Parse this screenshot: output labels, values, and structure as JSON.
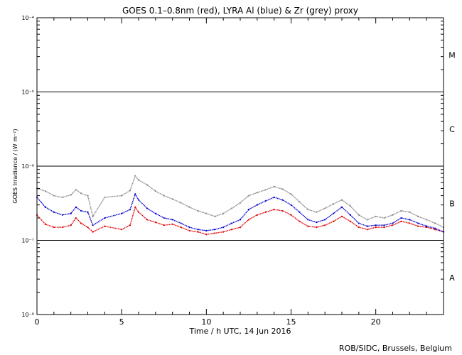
{
  "chart_data": {
    "type": "line",
    "title": "GOES 0.1–0.8nm (red), LYRA Al (blue) & Zr (grey) proxy",
    "xlabel": "Time / h UTC, 14 Jun 2016",
    "ylabel": "GOES Irradiance / (W m⁻²)",
    "xlim": [
      0,
      24
    ],
    "ylim_log10": [
      -8,
      -4
    ],
    "yscale": "log",
    "grid": false,
    "x_ticks": [
      "0",
      "5",
      "10",
      "15",
      "20"
    ],
    "y_ticks": [
      {
        "exp": -8,
        "label": "10⁻⁸"
      },
      {
        "exp": -7,
        "label": "10⁻⁷"
      },
      {
        "exp": -6,
        "label": "10⁻⁶"
      },
      {
        "exp": -5,
        "label": "10⁻⁵"
      },
      {
        "exp": -4,
        "label": "10⁻⁴"
      }
    ],
    "flare_class_lines": [
      {
        "value": 1e-07,
        "class": "A/B"
      },
      {
        "value": 1e-06,
        "class": "B/C"
      },
      {
        "value": 1e-05,
        "class": "C/M"
      }
    ],
    "flare_classes": [
      {
        "label": "M",
        "log_value": -4.5
      },
      {
        "label": "C",
        "log_value": -5.5
      },
      {
        "label": "B",
        "log_value": -6.5
      },
      {
        "label": "A",
        "log_value": -7.5
      }
    ],
    "series": [
      {
        "name": "GOES 0.1–0.8nm",
        "color": "#e00000",
        "x": [
          0.0,
          0.5,
          1.0,
          1.5,
          2.0,
          2.3,
          2.6,
          3.0,
          3.3,
          4.0,
          5.0,
          5.5,
          5.8,
          6.0,
          6.5,
          7.0,
          7.5,
          8.0,
          8.5,
          9.0,
          9.5,
          10.0,
          10.5,
          11.0,
          11.5,
          12.0,
          12.5,
          13.0,
          13.5,
          14.0,
          14.5,
          15.0,
          15.5,
          16.0,
          16.5,
          17.0,
          17.5,
          18.0,
          18.5,
          19.0,
          19.5,
          20.0,
          20.5,
          21.0,
          21.5,
          22.0,
          22.5,
          23.0,
          23.5,
          24.0
        ],
        "y": [
          2.2e-07,
          1.65e-07,
          1.5e-07,
          1.5e-07,
          1.6e-07,
          2e-07,
          1.7e-07,
          1.5e-07,
          1.3e-07,
          1.55e-07,
          1.4e-07,
          1.6e-07,
          2.8e-07,
          2.4e-07,
          1.9e-07,
          1.75e-07,
          1.6e-07,
          1.65e-07,
          1.5e-07,
          1.35e-07,
          1.3e-07,
          1.2e-07,
          1.25e-07,
          1.3e-07,
          1.4e-07,
          1.5e-07,
          1.9e-07,
          2.2e-07,
          2.4e-07,
          2.6e-07,
          2.5e-07,
          2.2e-07,
          1.8e-07,
          1.55e-07,
          1.5e-07,
          1.6e-07,
          1.8e-07,
          2.1e-07,
          1.8e-07,
          1.5e-07,
          1.4e-07,
          1.5e-07,
          1.5e-07,
          1.6e-07,
          1.8e-07,
          1.7e-07,
          1.55e-07,
          1.5e-07,
          1.4e-07,
          1.3e-07
        ]
      },
      {
        "name": "LYRA Al",
        "color": "#0000d0",
        "x": [
          0.0,
          0.5,
          1.0,
          1.5,
          2.0,
          2.3,
          2.6,
          3.0,
          3.3,
          4.0,
          5.0,
          5.5,
          5.8,
          6.0,
          6.5,
          7.0,
          7.5,
          8.0,
          8.5,
          9.0,
          9.5,
          10.0,
          10.5,
          11.0,
          11.5,
          12.0,
          12.5,
          13.0,
          13.5,
          14.0,
          14.5,
          15.0,
          15.5,
          16.0,
          16.5,
          17.0,
          17.5,
          18.0,
          18.5,
          19.0,
          19.5,
          20.0,
          20.5,
          21.0,
          21.5,
          22.0,
          22.5,
          23.0,
          23.5,
          24.0
        ],
        "y": [
          3.8e-07,
          2.8e-07,
          2.4e-07,
          2.2e-07,
          2.3e-07,
          2.8e-07,
          2.5e-07,
          2.4e-07,
          1.6e-07,
          2e-07,
          2.3e-07,
          2.6e-07,
          4.2e-07,
          3.5e-07,
          2.7e-07,
          2.3e-07,
          2e-07,
          1.9e-07,
          1.7e-07,
          1.5e-07,
          1.4e-07,
          1.35e-07,
          1.4e-07,
          1.5e-07,
          1.7e-07,
          1.9e-07,
          2.6e-07,
          3e-07,
          3.4e-07,
          3.8e-07,
          3.5e-07,
          3e-07,
          2.4e-07,
          1.9e-07,
          1.75e-07,
          1.9e-07,
          2.3e-07,
          2.8e-07,
          2.2e-07,
          1.7e-07,
          1.55e-07,
          1.6e-07,
          1.6e-07,
          1.7e-07,
          2e-07,
          1.9e-07,
          1.7e-07,
          1.55e-07,
          1.45e-07,
          1.3e-07
        ]
      },
      {
        "name": "LYRA Zr",
        "color": "#8a8a8a",
        "x": [
          0.0,
          0.5,
          1.0,
          1.5,
          2.0,
          2.3,
          2.6,
          3.0,
          3.3,
          4.0,
          5.0,
          5.5,
          5.8,
          6.0,
          6.5,
          7.0,
          7.5,
          8.0,
          8.5,
          9.0,
          9.5,
          10.0,
          10.5,
          11.0,
          11.5,
          12.0,
          12.5,
          13.0,
          13.5,
          14.0,
          14.5,
          15.0,
          15.5,
          16.0,
          16.5,
          17.0,
          17.5,
          18.0,
          18.5,
          19.0,
          19.5,
          20.0,
          20.5,
          21.0,
          21.5,
          22.0,
          22.5,
          23.0,
          23.5,
          24.0
        ],
        "y": [
          5e-07,
          4.6e-07,
          4e-07,
          3.8e-07,
          4.1e-07,
          4.8e-07,
          4.3e-07,
          4e-07,
          2.1e-07,
          3.8e-07,
          4e-07,
          4.7e-07,
          7.4e-07,
          6.5e-07,
          5.6e-07,
          4.6e-07,
          4e-07,
          3.6e-07,
          3.2e-07,
          2.8e-07,
          2.5e-07,
          2.3e-07,
          2.1e-07,
          2.3e-07,
          2.7e-07,
          3.2e-07,
          4e-07,
          4.4e-07,
          4.8e-07,
          5.3e-07,
          4.9e-07,
          4.2e-07,
          3.3e-07,
          2.6e-07,
          2.4e-07,
          2.7e-07,
          3.1e-07,
          3.5e-07,
          2.9e-07,
          2.2e-07,
          1.9e-07,
          2.1e-07,
          2e-07,
          2.2e-07,
          2.5e-07,
          2.4e-07,
          2.1e-07,
          1.9e-07,
          1.7e-07,
          1.5e-07
        ]
      }
    ]
  },
  "credit": "ROB/SIDC, Brussels, Belgium"
}
